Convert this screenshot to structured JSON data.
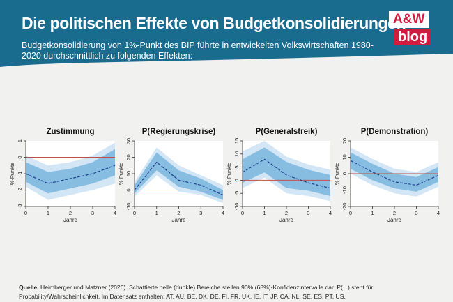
{
  "header": {
    "title": "Die politischen Effekte von Budgetkonsolidierungen",
    "subtitle": "Budgetkonsolidierung von 1%-Punkt des BIP führte in entwickelten Volkswirtschaften 1980-2020 durchschnittlich zu folgenden Effekten:"
  },
  "logo": {
    "top": "A&W",
    "bottom": "blog"
  },
  "colors": {
    "header_bg": "#1a6c8f",
    "band_outer": "#d3e6f6",
    "band_inner": "#86bde1",
    "line": "#1f3f8e",
    "zero_line": "#c0504d",
    "brand_red": "#d11c3f"
  },
  "chart_data": [
    {
      "type": "line",
      "title": "Zustimmung",
      "xlabel": "Jahre",
      "ylabel": "%-Punkte",
      "x": [
        0,
        1,
        2,
        3,
        4
      ],
      "xticks": [
        "0",
        "1",
        "2",
        "3",
        "4"
      ],
      "yticks": [
        -3,
        -2,
        -1,
        0,
        1
      ],
      "ylim": [
        -3,
        1
      ],
      "estimate": [
        -1.0,
        -1.6,
        -1.3,
        -1.0,
        -0.5
      ],
      "ci68_low": [
        -1.5,
        -2.2,
        -1.9,
        -1.6,
        -1.1
      ],
      "ci68_high": [
        -0.3,
        -0.9,
        -0.7,
        -0.3,
        0.5
      ],
      "ci90_low": [
        -1.8,
        -2.6,
        -2.3,
        -2.0,
        -1.6
      ],
      "ci90_high": [
        0.1,
        -0.5,
        -0.3,
        0.1,
        0.9
      ]
    },
    {
      "type": "line",
      "title": "P(Regierungskrise)",
      "xlabel": "Jahre",
      "ylabel": "%-Punkte",
      "x": [
        0,
        1,
        2,
        3,
        4
      ],
      "xticks": [
        "0",
        "1",
        "2",
        "3",
        "4"
      ],
      "yticks": [
        -10,
        0,
        10,
        20,
        30
      ],
      "ylim": [
        -10,
        30
      ],
      "estimate": [
        0.0,
        17.0,
        6.0,
        3.0,
        -3.0
      ],
      "ci68_low": [
        -2.0,
        12.0,
        2.0,
        -1.0,
        -6.0
      ],
      "ci68_high": [
        3.0,
        23.0,
        12.0,
        7.0,
        0.0
      ],
      "ci90_low": [
        -4.0,
        9.0,
        -1.0,
        -3.0,
        -8.0
      ],
      "ci90_high": [
        5.0,
        26.0,
        15.0,
        9.0,
        3.0
      ]
    },
    {
      "type": "line",
      "title": "P(Generalstreik)",
      "xlabel": "Jahre",
      "ylabel": "%-Punkte",
      "x": [
        0,
        1,
        2,
        3,
        4
      ],
      "xticks": [
        "0",
        "1",
        "2",
        "3",
        "4"
      ],
      "yticks": [
        -10,
        -5,
        0,
        5,
        10,
        15
      ],
      "ylim": [
        -10,
        15
      ],
      "estimate": [
        3.0,
        8.0,
        2.0,
        -1.0,
        -3.0
      ],
      "ci68_low": [
        -1.0,
        3.0,
        -3.0,
        -4.0,
        -6.0
      ],
      "ci68_high": [
        8.0,
        12.5,
        7.0,
        4.0,
        2.0
      ],
      "ci90_low": [
        -3.0,
        1.0,
        -5.0,
        -6.0,
        -8.0
      ],
      "ci90_high": [
        11.0,
        15.0,
        9.0,
        6.0,
        4.0
      ]
    },
    {
      "type": "line",
      "title": "P(Demonstration)",
      "xlabel": "Jahre",
      "ylabel": "%-Punkte",
      "x": [
        0,
        1,
        2,
        3,
        4
      ],
      "xticks": [
        "0",
        "1",
        "2",
        "3",
        "4"
      ],
      "yticks": [
        -20,
        -10,
        0,
        10,
        20
      ],
      "ylim": [
        -20,
        20
      ],
      "estimate": [
        8.0,
        1.0,
        -5.0,
        -7.0,
        -1.0
      ],
      "ci68_low": [
        3.0,
        -4.0,
        -9.0,
        -11.0,
        -5.0
      ],
      "ci68_high": [
        13.0,
        6.0,
        0.0,
        -2.0,
        4.0
      ],
      "ci90_low": [
        0.0,
        -7.0,
        -12.0,
        -14.0,
        -8.0
      ],
      "ci90_high": [
        16.0,
        9.0,
        3.0,
        1.0,
        7.0
      ]
    }
  ],
  "footnote": {
    "label": "Quelle",
    "text": ": Heimberger und Matzner (2026). Schattierte helle (dunkle) Bereiche stellen 90% (68%)-Konfidenzintervalle dar. P(...) steht für Probability/Wahrscheinlichkeit. Im Datensatz enthalten: AT, AU, BE, DK, DE, FI, FR, UK, IE, IT, JP, CA, NL, SE, ES, PT, US."
  }
}
